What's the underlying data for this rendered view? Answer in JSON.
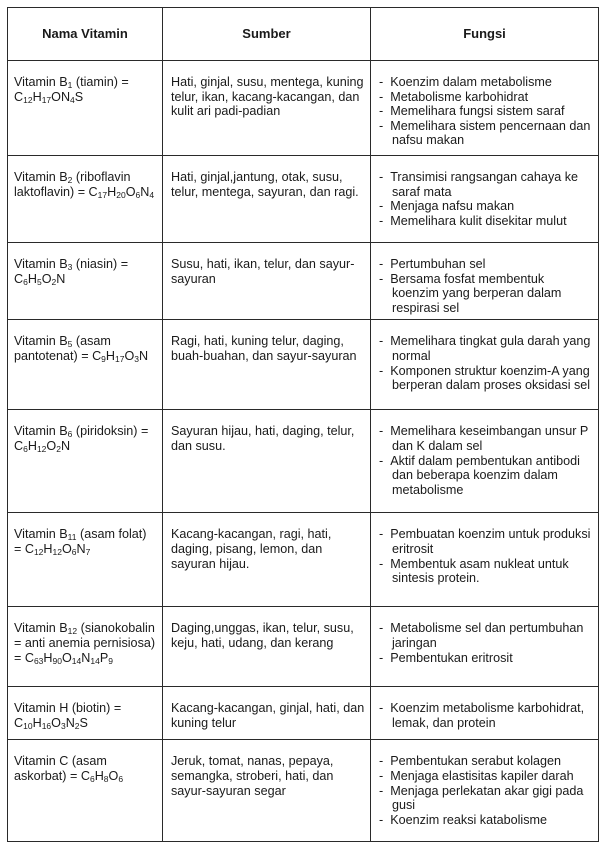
{
  "headers": [
    "Nama Vitamin",
    "Sumber",
    "Fungsi"
  ],
  "rows": [
    {
      "name": [
        {
          "t": "Vitamin B"
        },
        {
          "s": "1"
        },
        {
          "t": " (tiamin) = C"
        },
        {
          "s": "12"
        },
        {
          "t": "H"
        },
        {
          "s": "17"
        },
        {
          "t": "ON"
        },
        {
          "s": "4"
        },
        {
          "t": "S"
        }
      ],
      "sumber": "Hati, ginjal, susu, mentega, kuning telur, ikan, kacang-kacangan, dan kulit ari padi-padian",
      "fungsi": [
        "Koenzim dalam metabolisme",
        "Metabolisme karbohidrat",
        "Memelihara fungsi sistem saraf",
        "Memelihara sistem pencernaan dan nafsu makan"
      ]
    },
    {
      "name": [
        {
          "t": "Vitamin B"
        },
        {
          "s": "2"
        },
        {
          "t": " (riboflavin laktoflavin) = C"
        },
        {
          "s": "17"
        },
        {
          "t": "H"
        },
        {
          "s": "20"
        },
        {
          "t": "O"
        },
        {
          "s": "6"
        },
        {
          "t": "N"
        },
        {
          "s": "4"
        }
      ],
      "sumber": "Hati, ginjal,jantung, otak, susu, telur, mentega, sayuran, dan ragi.",
      "fungsi": [
        "Transimisi rangsangan cahaya ke saraf mata",
        "Menjaga nafsu makan",
        "Memelihara kulit disekitar mulut"
      ]
    },
    {
      "name": [
        {
          "t": "Vitamin B"
        },
        {
          "s": "3"
        },
        {
          "t": " (niasin) = C"
        },
        {
          "s": "6"
        },
        {
          "t": "H"
        },
        {
          "s": "5"
        },
        {
          "t": "O"
        },
        {
          "s": "2"
        },
        {
          "t": "N"
        }
      ],
      "sumber": "Susu, hati, ikan, telur, dan sayur-sayuran",
      "fungsi": [
        "Pertumbuhan sel",
        "Bersama fosfat membentuk koenzim yang berperan dalam respirasi sel"
      ]
    },
    {
      "name": [
        {
          "t": "Vitamin B"
        },
        {
          "s": "5"
        },
        {
          "t": " (asam pantotenat) = C"
        },
        {
          "s": "9"
        },
        {
          "t": "H"
        },
        {
          "s": "17"
        },
        {
          "t": "O"
        },
        {
          "s": "3"
        },
        {
          "t": "N"
        }
      ],
      "sumber": "Ragi, hati, kuning telur, daging, buah-buahan, dan sayur-sayuran",
      "fungsi": [
        "Memelihara tingkat gula darah yang normal",
        "Komponen struktur koenzim-A yang berperan dalam proses oksidasi sel"
      ]
    },
    {
      "name": [
        {
          "t": "Vitamin B"
        },
        {
          "s": "6"
        },
        {
          "t": " (piridoksin) = C"
        },
        {
          "s": "6"
        },
        {
          "t": "H"
        },
        {
          "s": "12"
        },
        {
          "t": "O"
        },
        {
          "s": "2"
        },
        {
          "t": "N"
        }
      ],
      "sumber": "Sayuran hijau, hati, daging, telur, dan susu.",
      "fungsi": [
        "Memelihara keseimbangan unsur P dan K dalam sel",
        "Aktif dalam pembentukan antibodi dan beberapa koenzim dalam metabolisme"
      ]
    },
    {
      "name": [
        {
          "t": "Vitamin B"
        },
        {
          "s": "11"
        },
        {
          "t": " (asam folat) = C"
        },
        {
          "s": "12"
        },
        {
          "t": "H"
        },
        {
          "s": "12"
        },
        {
          "t": "O"
        },
        {
          "s": "6"
        },
        {
          "t": "N"
        },
        {
          "s": "7"
        }
      ],
      "sumber": "Kacang-kacangan, ragi, hati, daging, pisang, lemon, dan sayuran hijau.",
      "fungsi": [
        "Pembuatan koenzim untuk produksi eritrosit",
        "Membentuk asam nukleat untuk sintesis protein."
      ]
    },
    {
      "name": [
        {
          "t": "Vitamin B"
        },
        {
          "s": "12"
        },
        {
          "t": " (sianokobalin = anti anemia pernisiosa) = C"
        },
        {
          "s": "63"
        },
        {
          "t": "H"
        },
        {
          "s": "90"
        },
        {
          "t": "O"
        },
        {
          "s": "14"
        },
        {
          "t": "N"
        },
        {
          "s": "14"
        },
        {
          "t": "P"
        },
        {
          "s": "9"
        }
      ],
      "sumber": "Daging,unggas, ikan, telur, susu, keju, hati, udang, dan kerang",
      "fungsi": [
        "Metabolisme sel dan pertumbuhan jaringan",
        "Pembentukan eritrosit"
      ]
    },
    {
      "name": [
        {
          "t": "Vitamin H (biotin) = C"
        },
        {
          "s": "10"
        },
        {
          "t": "H"
        },
        {
          "s": "16"
        },
        {
          "t": "O"
        },
        {
          "s": "3"
        },
        {
          "t": "N"
        },
        {
          "s": "2"
        },
        {
          "t": "S"
        }
      ],
      "sumber": "Kacang-kacangan, ginjal, hati, dan kuning telur",
      "fungsi": [
        "Koenzim metabolisme karbohidrat, lemak, dan protein"
      ]
    },
    {
      "name": [
        {
          "t": "Vitamin C (asam askorbat) = C"
        },
        {
          "s": "6"
        },
        {
          "t": "H"
        },
        {
          "s": "8"
        },
        {
          "t": "O"
        },
        {
          "s": "6"
        }
      ],
      "sumber": "Jeruk, tomat, nanas, pepaya, semangka, stroberi, hati, dan sayur-sayuran segar",
      "fungsi": [
        "Pembentukan serabut kolagen",
        "Menjaga elastisitas kapiler darah",
        "Menjaga perlekatan akar gigi pada gusi",
        "Koenzim reaksi katabolisme"
      ]
    }
  ]
}
